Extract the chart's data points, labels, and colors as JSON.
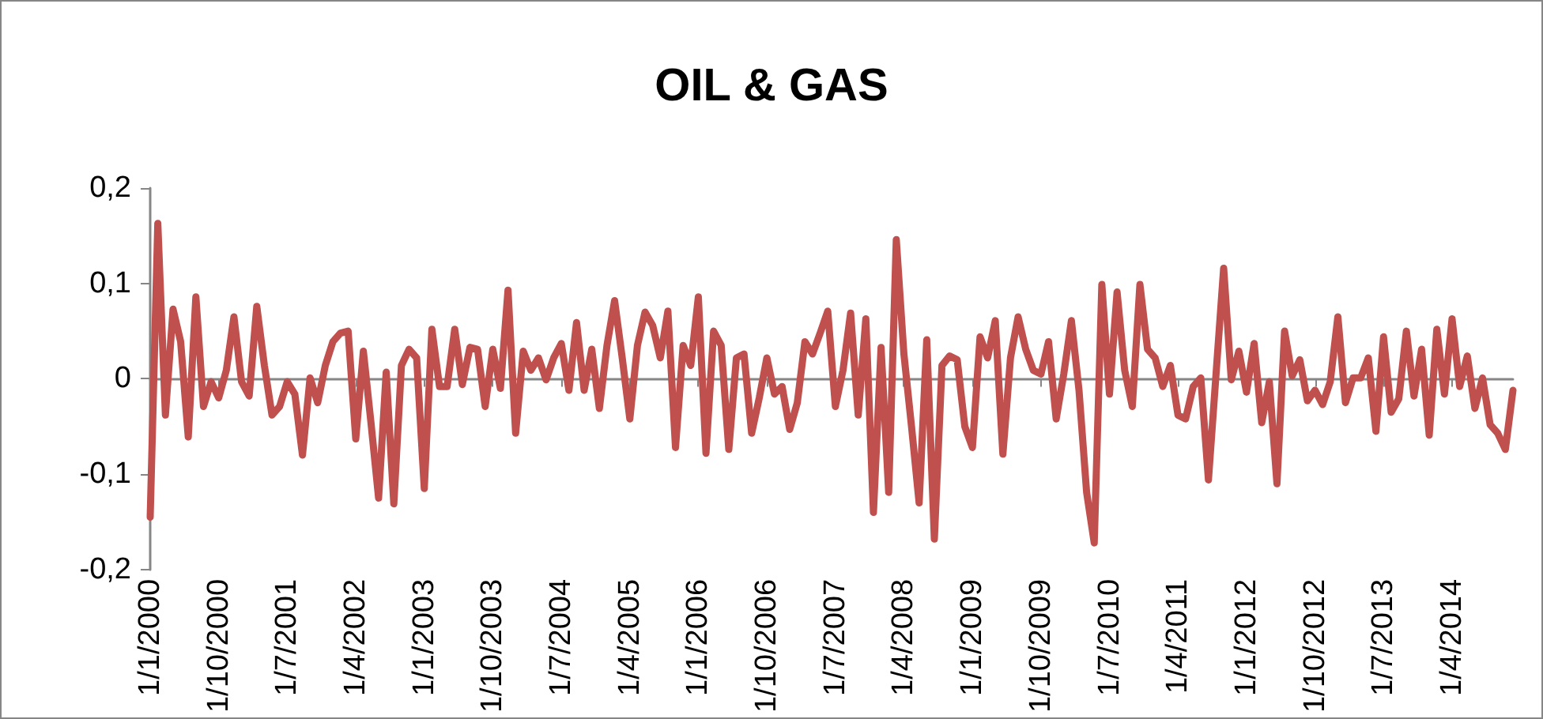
{
  "chart_data": {
    "type": "line",
    "title": "OIL & GAS",
    "categories": [
      "1/1/2000",
      null,
      null,
      null,
      null,
      null,
      null,
      null,
      null,
      "1/10/2000",
      null,
      null,
      null,
      null,
      null,
      null,
      null,
      null,
      "1/7/2001",
      null,
      null,
      null,
      null,
      null,
      null,
      null,
      null,
      "1/4/2002",
      null,
      null,
      null,
      null,
      null,
      null,
      null,
      null,
      "1/1/2003",
      null,
      null,
      null,
      null,
      null,
      null,
      null,
      null,
      "1/10/2003",
      null,
      null,
      null,
      null,
      null,
      null,
      null,
      null,
      "1/7/2004",
      null,
      null,
      null,
      null,
      null,
      null,
      null,
      null,
      "1/4/2005",
      null,
      null,
      null,
      null,
      null,
      null,
      null,
      null,
      "1/1/2006",
      null,
      null,
      null,
      null,
      null,
      null,
      null,
      null,
      "1/10/2006",
      null,
      null,
      null,
      null,
      null,
      null,
      null,
      null,
      "1/7/2007",
      null,
      null,
      null,
      null,
      null,
      null,
      null,
      null,
      "1/4/2008",
      null,
      null,
      null,
      null,
      null,
      null,
      null,
      null,
      "1/1/2009",
      null,
      null,
      null,
      null,
      null,
      null,
      null,
      null,
      "1/10/2009",
      null,
      null,
      null,
      null,
      null,
      null,
      null,
      null,
      "1/7/2010",
      null,
      null,
      null,
      null,
      null,
      null,
      null,
      null,
      "1/4/2011",
      null,
      null,
      null,
      null,
      null,
      null,
      null,
      null,
      "1/1/2012",
      null,
      null,
      null,
      null,
      null,
      null,
      null,
      null,
      "1/10/2012",
      null,
      null,
      null,
      null,
      null,
      null,
      null,
      null,
      "1/7/2013",
      null,
      null,
      null,
      null,
      null,
      null,
      null,
      null,
      "1/4/2014",
      null,
      null,
      null,
      null,
      null,
      null,
      null,
      null
    ],
    "series": [
      {
        "color": "#c0504d",
        "values": [
          -0.145,
          0.163,
          -0.038,
          0.073,
          0.039,
          -0.061,
          0.086,
          -0.029,
          -0.003,
          -0.02,
          0.009,
          0.065,
          -0.003,
          -0.018,
          0.076,
          0.014,
          -0.038,
          -0.029,
          -0.003,
          -0.016,
          -0.08,
          0.001,
          -0.025,
          0.014,
          0.039,
          0.048,
          0.05,
          -0.063,
          0.029,
          -0.046,
          -0.125,
          0.007,
          -0.131,
          0.014,
          0.031,
          0.022,
          -0.115,
          0.052,
          -0.008,
          -0.008,
          0.052,
          -0.006,
          0.033,
          0.031,
          -0.029,
          0.031,
          -0.01,
          0.093,
          -0.057,
          0.029,
          0.009,
          0.022,
          -0.001,
          0.022,
          0.037,
          -0.012,
          0.059,
          -0.012,
          0.031,
          -0.031,
          0.035,
          0.082,
          0.022,
          -0.042,
          0.035,
          0.07,
          0.056,
          0.022,
          0.071,
          -0.072,
          0.035,
          0.014,
          0.086,
          -0.078,
          0.05,
          0.035,
          -0.074,
          0.022,
          0.026,
          -0.057,
          -0.02,
          0.022,
          -0.016,
          -0.008,
          -0.053,
          -0.025,
          0.039,
          0.026,
          0.048,
          0.071,
          -0.029,
          0.009,
          0.069,
          -0.038,
          0.063,
          -0.14,
          0.033,
          -0.119,
          0.146,
          0.026,
          -0.05,
          -0.13,
          0.041,
          -0.168,
          0.014,
          0.024,
          0.02,
          -0.05,
          -0.072,
          0.044,
          0.022,
          0.061,
          -0.079,
          0.022,
          0.065,
          0.031,
          0.009,
          0.005,
          0.039,
          -0.042,
          0.005,
          0.061,
          -0.012,
          -0.119,
          -0.172,
          0.099,
          -0.016,
          0.091,
          0.009,
          -0.029,
          0.099,
          0.031,
          0.022,
          -0.008,
          0.014,
          -0.038,
          -0.042,
          -0.008,
          0.001,
          -0.106,
          0.005,
          0.116,
          -0.001,
          0.029,
          -0.014,
          0.037,
          -0.046,
          -0.003,
          -0.11,
          0.05,
          0.003,
          0.02,
          -0.023,
          -0.012,
          -0.027,
          -0.003,
          0.065,
          -0.025,
          0.001,
          0.001,
          0.022,
          -0.055,
          0.044,
          -0.035,
          -0.021,
          0.05,
          -0.018,
          0.031,
          -0.059,
          0.052,
          -0.016,
          0.063,
          -0.008,
          0.024,
          -0.031,
          0.001,
          -0.048,
          -0.057,
          -0.074,
          -0.012
        ]
      }
    ],
    "ylim": [
      -0.2,
      0.2
    ],
    "yticks": [
      {
        "value": -0.2,
        "label": "-0,2"
      },
      {
        "value": -0.1,
        "label": "-0,1"
      },
      {
        "value": 0,
        "label": "0"
      },
      {
        "value": 0.1,
        "label": "0,1"
      },
      {
        "value": 0.2,
        "label": "0,2"
      }
    ],
    "line_style": "solid",
    "marker": "none"
  }
}
